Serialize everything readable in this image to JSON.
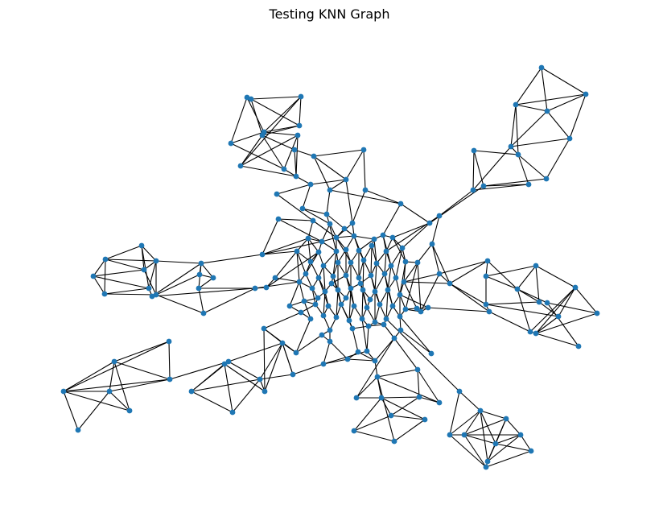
{
  "figure": {
    "title": "Testing KNN Graph",
    "node_color": "#1f77b4",
    "edge_color": "#000000",
    "background": "#ffffff",
    "axes": "off"
  }
}
